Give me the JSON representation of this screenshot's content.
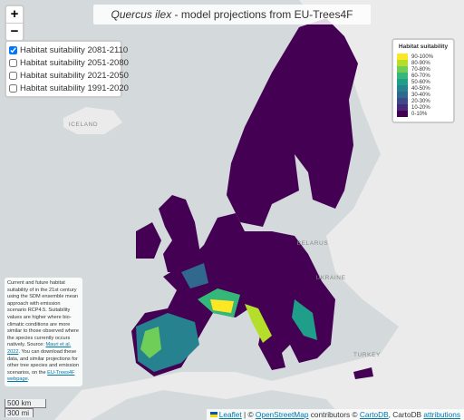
{
  "title": {
    "species": "Quercus ilex",
    "rest": " - model projections from EU-Trees4F"
  },
  "zoom": {
    "in": "+",
    "out": "−"
  },
  "layers": [
    {
      "label": "Habitat suitability 2081-2110",
      "checked": true
    },
    {
      "label": "Habitat suitability 2051-2080",
      "checked": false
    },
    {
      "label": "Habitat suitability 2021-2050",
      "checked": false
    },
    {
      "label": "Habitat suitability 1991-2020",
      "checked": false
    }
  ],
  "legend": {
    "title": "Habitat suitability",
    "items": [
      {
        "label": "90-100%",
        "color": "#fde725"
      },
      {
        "label": "80-90%",
        "color": "#b5de2b"
      },
      {
        "label": "70-80%",
        "color": "#6ece58"
      },
      {
        "label": "60-70%",
        "color": "#35b779"
      },
      {
        "label": "50-60%",
        "color": "#1f9e89"
      },
      {
        "label": "40-50%",
        "color": "#26828e"
      },
      {
        "label": "30-40%",
        "color": "#31688e"
      },
      {
        "label": "20-30%",
        "color": "#3e4989"
      },
      {
        "label": "10-20%",
        "color": "#482878"
      },
      {
        "label": "0-10%",
        "color": "#440154"
      }
    ]
  },
  "map_labels": [
    "ICELAND",
    "BELARUS",
    "UKRAINE",
    "TURKEY"
  ],
  "info": {
    "text": "Current and future habitat suitability of in the 21st century using the SDM ensemble mean approach with emission scenario RCP4.5. Suitability values are higher where bio-climatic conditions are more similar to those observed where the species currently occurs natively.",
    "source": "Source: ",
    "source_link": "Mauri et al. 2022",
    "source_end": ".",
    "download": " You can download these data, and similar projections for other tree species and emission scenarios, on the ",
    "download_link": "EU-Trees4F webpage",
    "download_end": "."
  },
  "scale": [
    "500 km",
    "300 mi"
  ],
  "attribution": {
    "leaflet": "Leaflet",
    "sep": " | © ",
    "osm": "OpenStreetMap",
    "mid": " contributors © ",
    "carto": "CartoDB",
    "comma": ", CartoDB ",
    "attr": "attributions"
  }
}
